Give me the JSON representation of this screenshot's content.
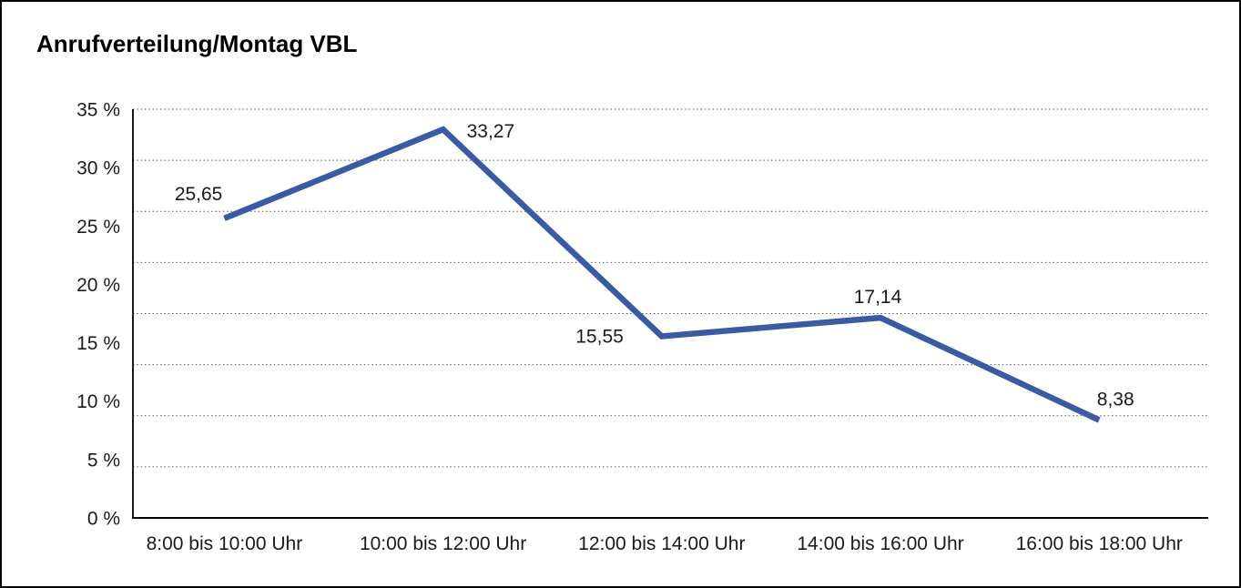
{
  "chart_data": {
    "type": "line",
    "title": "Anrufverteilung/Montag VBL",
    "categories": [
      "8:00 bis 10:00 Uhr",
      "10:00 bis 12:00 Uhr",
      "12:00 bis 14:00 Uhr",
      "14:00 bis 16:00 Uhr",
      "16:00 bis 18:00 Uhr"
    ],
    "values": [
      25.65,
      33.27,
      15.55,
      17.14,
      8.38
    ],
    "value_labels": [
      "25,65",
      "33,27",
      "15,55",
      "17,14",
      "8,38"
    ],
    "xlabel": "",
    "ylabel": "",
    "ylim": [
      0,
      35
    ],
    "y_tick_labels": [
      "0 %",
      "5 %",
      "10 %",
      "15 %",
      "20 %",
      "25 %",
      "30 %",
      "35 %"
    ],
    "grid": "horizontal-dotted",
    "gridline_count": 9,
    "legend": "none",
    "colors": {
      "line": "#3A5BA4",
      "grid": "#555555",
      "axis": "#000000",
      "text": "#1a1a1a",
      "background": "#ffffff",
      "border": "#000000"
    },
    "layout": {
      "label_positions": [
        "above-left",
        "right",
        "left",
        "above",
        "above-right"
      ]
    }
  }
}
